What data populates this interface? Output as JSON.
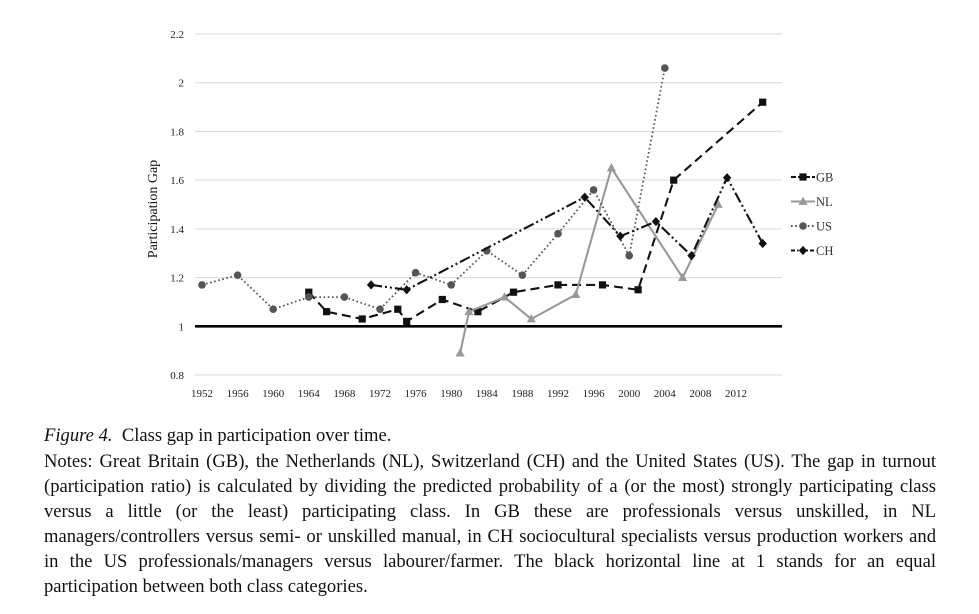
{
  "chart_data": {
    "type": "line",
    "title": "",
    "xlabel": "",
    "ylabel": "Participation Gap",
    "xlim": [
      1952,
      2015
    ],
    "ylim": [
      0.8,
      2.2
    ],
    "x_ticks": [
      1952,
      1956,
      1960,
      1964,
      1968,
      1972,
      1976,
      1980,
      1984,
      1988,
      1992,
      1996,
      2000,
      2004,
      2008,
      2012
    ],
    "y_ticks": [
      0.8,
      1,
      1.2,
      1.4,
      1.6,
      1.8,
      2,
      2.2
    ],
    "y_tick_labels": [
      "0.8",
      "1",
      "1.2",
      "1.4",
      "1.6",
      "1.8",
      "2",
      "2.2"
    ],
    "grid": "horizontal",
    "legend_position": "right",
    "reference_line": {
      "y": 1,
      "color": "#000000"
    },
    "series": [
      {
        "name": "GB",
        "color": "#111111",
        "marker": "square",
        "dash": "long-dash",
        "points": [
          [
            1964,
            1.14
          ],
          [
            1966,
            1.06
          ],
          [
            1970,
            1.03
          ],
          [
            1974,
            1.07
          ],
          [
            1975,
            1.02
          ],
          [
            1979,
            1.11
          ],
          [
            1983,
            1.06
          ],
          [
            1987,
            1.14
          ],
          [
            1992,
            1.17
          ],
          [
            1997,
            1.17
          ],
          [
            2001,
            1.15
          ],
          [
            2005,
            1.6
          ],
          [
            2015,
            1.92
          ]
        ]
      },
      {
        "name": "NL",
        "color": "#999999",
        "marker": "triangle",
        "dash": "solid",
        "points": [
          [
            1981,
            0.89
          ],
          [
            1982,
            1.06
          ],
          [
            1986,
            1.12
          ],
          [
            1989,
            1.03
          ],
          [
            1994,
            1.13
          ],
          [
            1998,
            1.65
          ],
          [
            2006,
            1.2
          ],
          [
            2010,
            1.5
          ]
        ]
      },
      {
        "name": "US",
        "color": "#555555",
        "marker": "circle",
        "dash": "dotted",
        "points": [
          [
            1952,
            1.17
          ],
          [
            1956,
            1.21
          ],
          [
            1960,
            1.07
          ],
          [
            1964,
            1.12
          ],
          [
            1968,
            1.12
          ],
          [
            1972,
            1.07
          ],
          [
            1976,
            1.22
          ],
          [
            1980,
            1.17
          ],
          [
            1984,
            1.31
          ],
          [
            1988,
            1.21
          ],
          [
            1992,
            1.38
          ],
          [
            1996,
            1.56
          ],
          [
            2000,
            1.29
          ],
          [
            2004,
            2.06
          ]
        ]
      },
      {
        "name": "CH",
        "color": "#111111",
        "marker": "diamond",
        "dash": "dash-dot-dot",
        "points": [
          [
            1971,
            1.17
          ],
          [
            1975,
            1.15
          ],
          [
            1995,
            1.53
          ],
          [
            1999,
            1.37
          ],
          [
            2003,
            1.43
          ],
          [
            2007,
            1.29
          ],
          [
            2011,
            1.61
          ],
          [
            2015,
            1.34
          ]
        ]
      }
    ]
  },
  "caption": {
    "label": "Figure 4.",
    "title": "Class gap in participation over time.",
    "notes": "Notes: Great Britain (GB), the Netherlands (NL), Switzerland (CH) and the United States (US). The gap in turnout (participation ratio) is calculated by dividing the predicted probability of a (or the most) strongly participating class versus a little (or the least) participating class. In GB these are professionals versus unskilled, in NL managers/controllers versus semi- or unskilled manual, in CH sociocultural specialists versus production workers and in the US professionals/managers versus labourer/farmer. The black horizontal line at 1 stands for an equal participation between both class categories."
  }
}
